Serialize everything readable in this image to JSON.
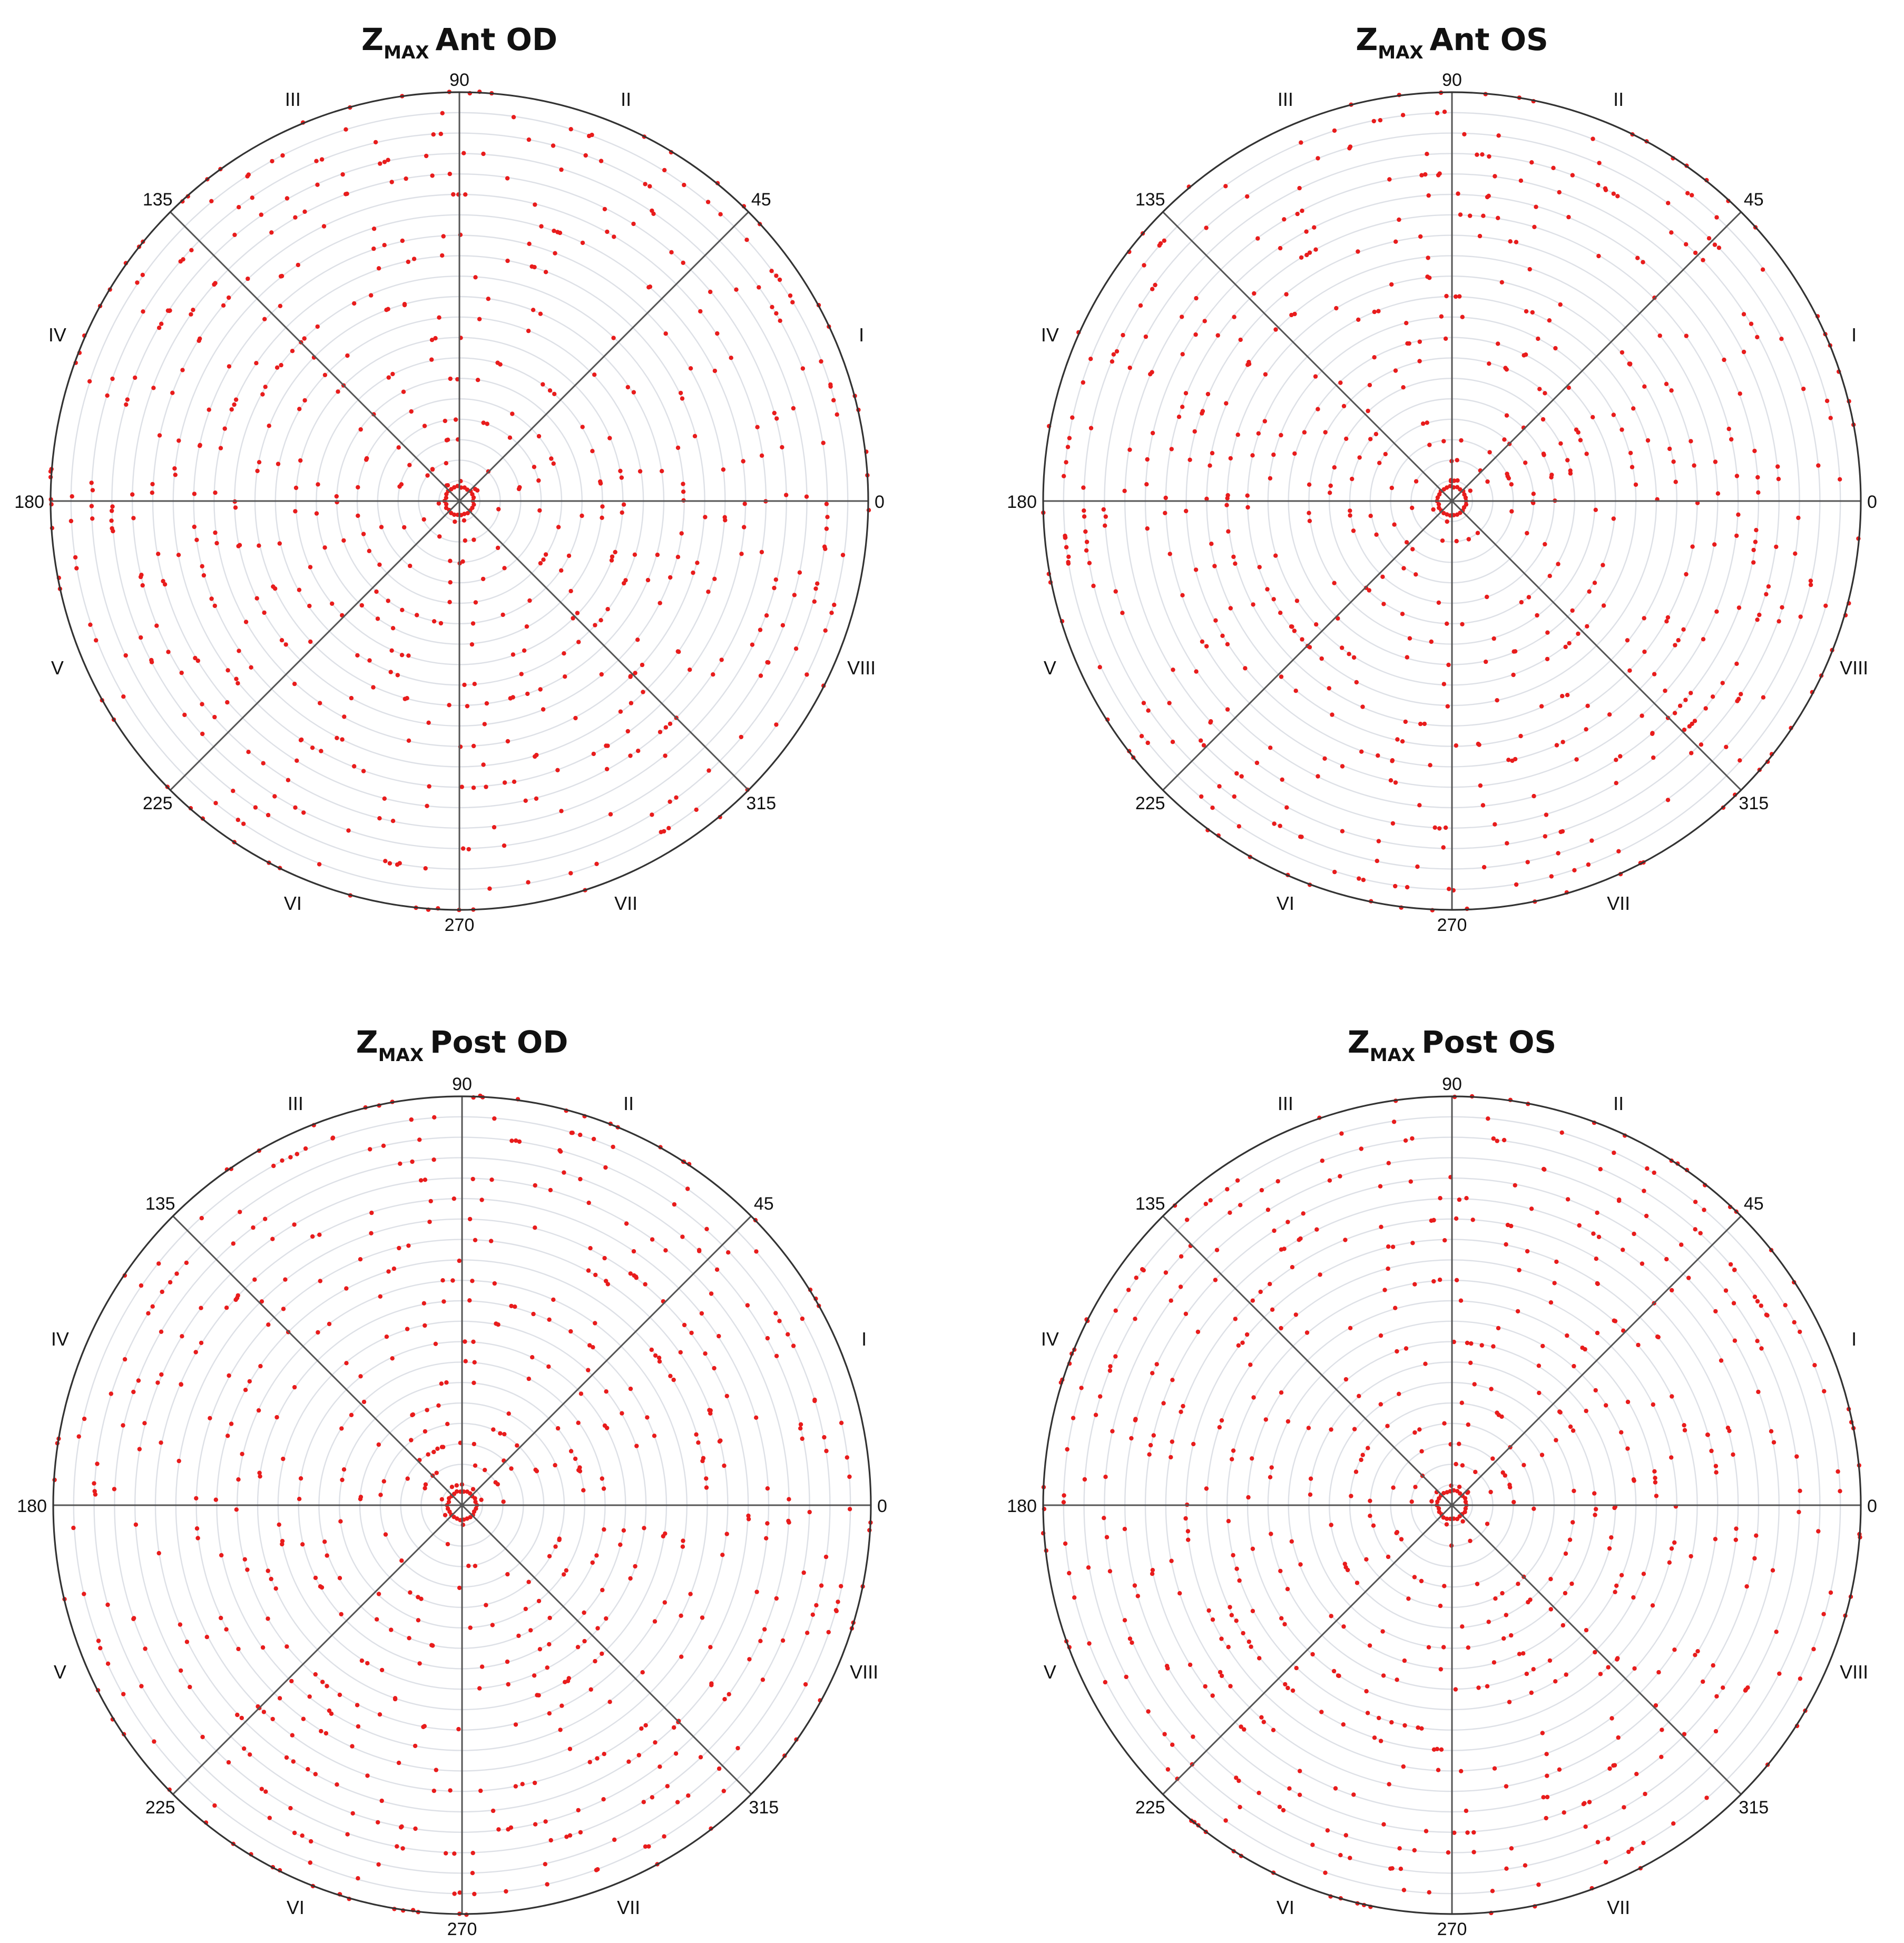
{
  "chart_data": [
    {
      "type": "scatter",
      "subtype": "polar",
      "title": {
        "main": "Z",
        "subscript": "MAX",
        "rest": "Ant OD"
      },
      "angle_ticks": [
        "0",
        "45",
        "90",
        "135",
        "180",
        "225",
        "270",
        "315"
      ],
      "octant_labels": [
        "I",
        "II",
        "III",
        "IV",
        "V",
        "VI",
        "VII",
        "VIII"
      ],
      "radial_grid_rings": 20,
      "grid": true,
      "marker_color": "#e81c1c",
      "seed": 11
    },
    {
      "type": "scatter",
      "subtype": "polar",
      "title": {
        "main": "Z",
        "subscript": "MAX",
        "rest": "Ant OS"
      },
      "angle_ticks": [
        "0",
        "45",
        "90",
        "135",
        "180",
        "225",
        "270",
        "315"
      ],
      "octant_labels": [
        "I",
        "II",
        "III",
        "IV",
        "V",
        "VI",
        "VII",
        "VIII"
      ],
      "radial_grid_rings": 20,
      "grid": true,
      "marker_color": "#e81c1c",
      "seed": 23
    },
    {
      "type": "scatter",
      "subtype": "polar",
      "title": {
        "main": "Z",
        "subscript": "MAX",
        "rest": "Post OD"
      },
      "angle_ticks": [
        "0",
        "45",
        "90",
        "135",
        "180",
        "225",
        "270",
        "315"
      ],
      "octant_labels": [
        "I",
        "II",
        "III",
        "IV",
        "V",
        "VI",
        "VII",
        "VIII"
      ],
      "radial_grid_rings": 20,
      "grid": true,
      "marker_color": "#e81c1c",
      "seed": 37
    },
    {
      "type": "scatter",
      "subtype": "polar",
      "title": {
        "main": "Z",
        "subscript": "MAX",
        "rest": "Post OS"
      },
      "angle_ticks": [
        "0",
        "45",
        "90",
        "135",
        "180",
        "225",
        "270",
        "315"
      ],
      "octant_labels": [
        "I",
        "II",
        "III",
        "IV",
        "V",
        "VI",
        "VII",
        "VIII"
      ],
      "radial_grid_rings": 20,
      "grid": true,
      "marker_color": "#e81c1c",
      "seed": 53
    }
  ]
}
